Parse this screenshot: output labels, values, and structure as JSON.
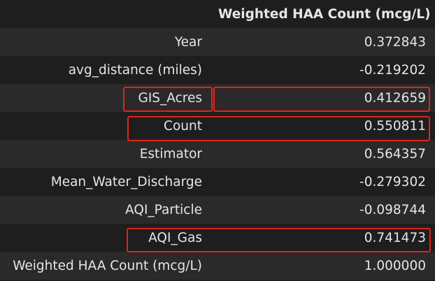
{
  "table": {
    "column_header": "Weighted HAA Count (mcg/L)",
    "rows": [
      {
        "label": "Year",
        "value": "0.372843"
      },
      {
        "label": "avg_distance (miles)",
        "value": "-0.219202"
      },
      {
        "label": "GIS_Acres",
        "value": "0.412659"
      },
      {
        "label": "Count",
        "value": "0.550811"
      },
      {
        "label": "Estimator",
        "value": "0.564357"
      },
      {
        "label": "Mean_Water_Discharge",
        "value": "-0.279302"
      },
      {
        "label": "AQI_Particle",
        "value": "-0.098744"
      },
      {
        "label": "AQI_Gas",
        "value": "0.741473"
      },
      {
        "label": "Weighted HAA Count (mcg/L)",
        "value": "1.000000"
      }
    ]
  },
  "highlighted_rows": [
    "GIS_Acres",
    "Count",
    "AQI_Gas"
  ],
  "colors": {
    "background": "#1e1e1e",
    "row_stripe": "#2a2a2a",
    "text": "#e6e6e6",
    "highlight_border": "#e2231a"
  }
}
